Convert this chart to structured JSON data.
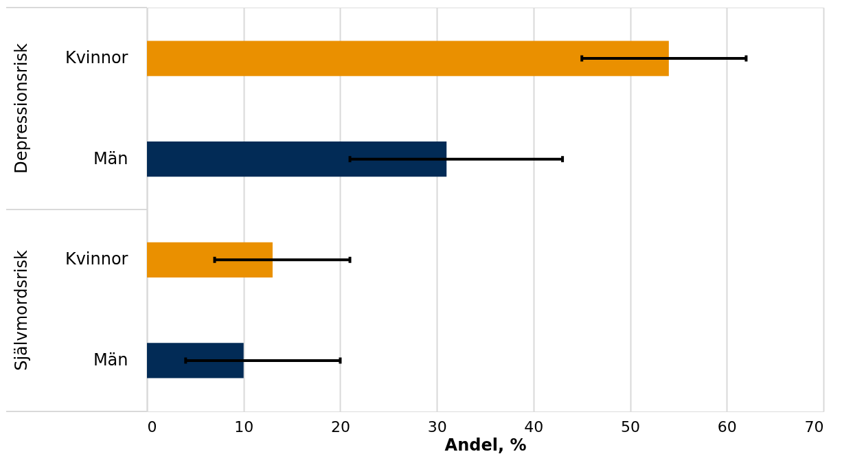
{
  "chart_data": {
    "type": "bar",
    "orientation": "horizontal",
    "xlabel": "Andel, %",
    "categories": [
      "Kvinnor",
      "Män",
      "Kvinnor",
      "Män"
    ],
    "values": [
      54,
      31,
      13,
      10
    ],
    "colors": [
      "#ea9000",
      "#022b56",
      "#ea9000",
      "#022b56"
    ],
    "errors": [
      [
        45,
        62
      ],
      [
        21,
        43
      ],
      [
        7,
        21
      ],
      [
        4,
        20
      ]
    ],
    "xlim": [
      0,
      70
    ],
    "xticks": [
      0,
      10,
      20,
      30,
      40,
      50,
      60,
      70
    ],
    "grid": "x",
    "annotations": [
      "Depressionsrisk",
      "Självmordsrisk"
    ]
  }
}
